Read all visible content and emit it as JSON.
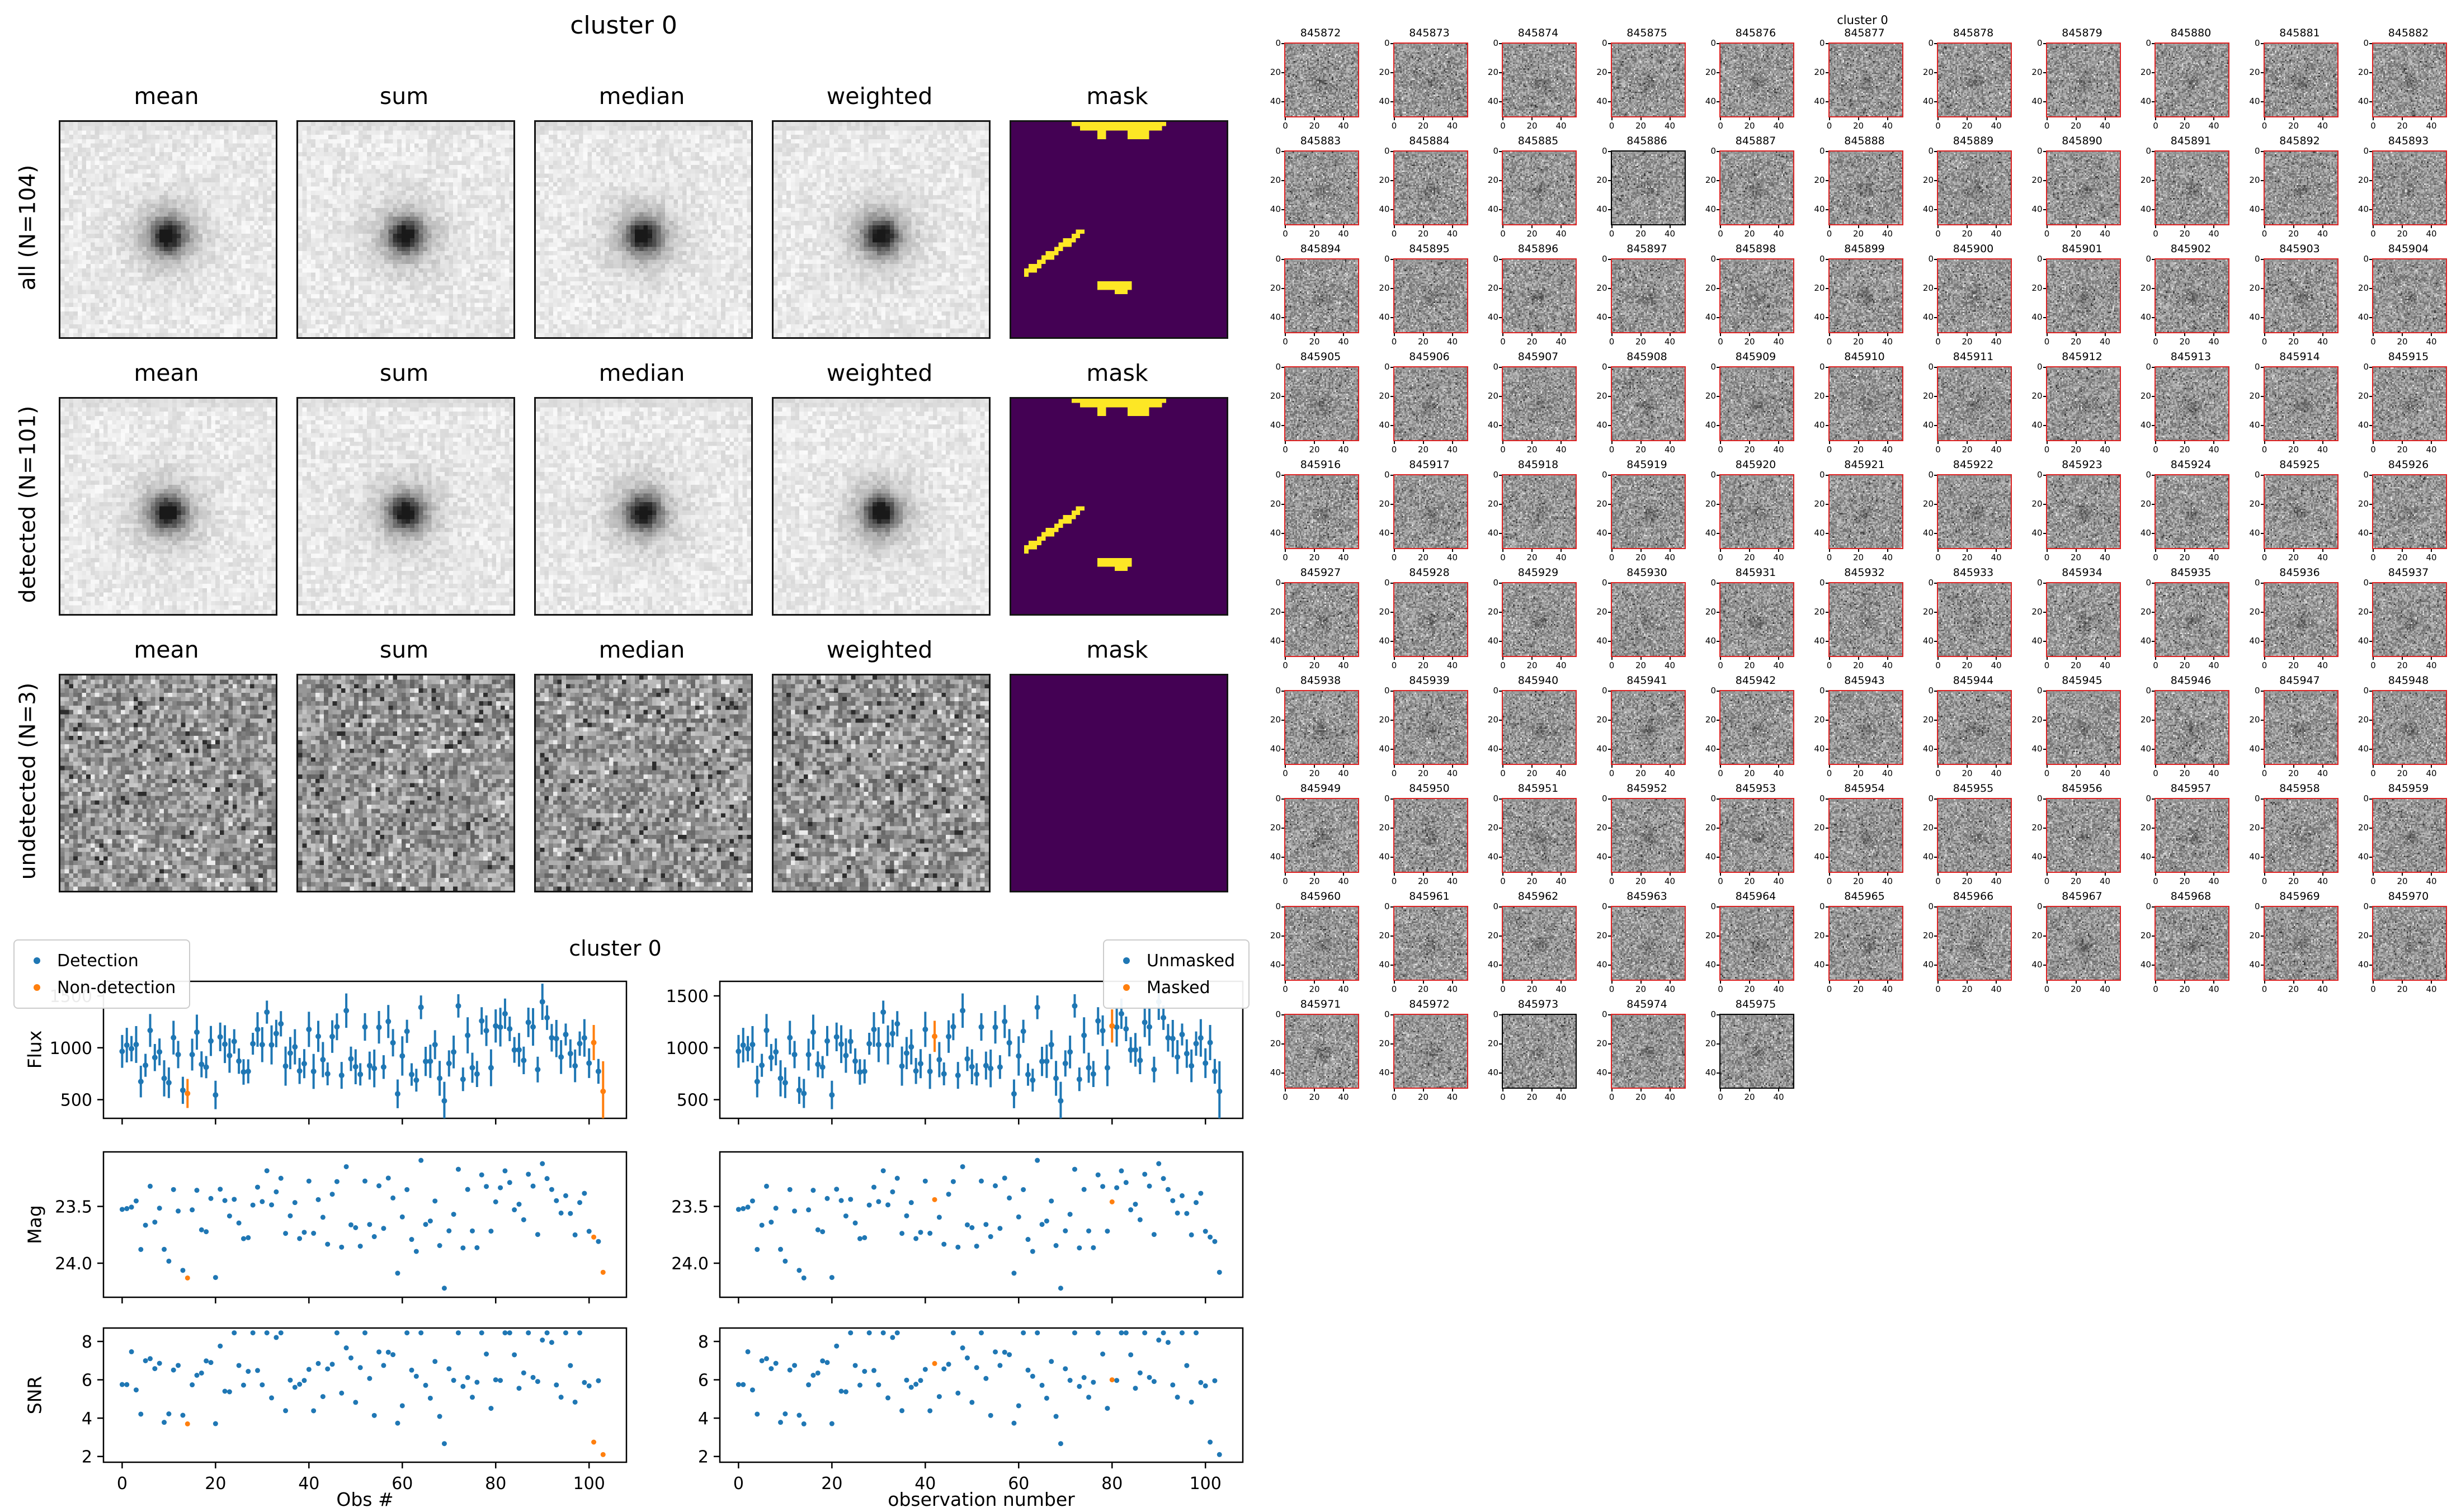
{
  "left_figure": {
    "title": "cluster 0",
    "column_headers": [
      "mean",
      "sum",
      "median",
      "weighted",
      "mask"
    ],
    "rows": [
      {
        "label": "all (N=104)",
        "stamp_type": "light-blob",
        "mask_has_pattern": true
      },
      {
        "label": "detected (N=101)",
        "stamp_type": "light-blob",
        "mask_has_pattern": true
      },
      {
        "label": "undetected (N=3)",
        "stamp_type": "dark-noise",
        "mask_has_pattern": false
      }
    ],
    "mask": {
      "background_color": "#440154",
      "pixel_color": "#fde725",
      "grid_size": 50,
      "cells": [
        [
          14,
          0,
          22,
          1
        ],
        [
          16,
          1,
          7,
          1
        ],
        [
          23,
          1,
          12,
          1
        ],
        [
          20,
          2,
          2,
          2
        ],
        [
          27,
          2,
          5,
          2
        ],
        [
          3,
          34,
          1,
          2
        ],
        [
          4,
          33,
          1,
          2
        ],
        [
          5,
          33,
          1,
          2
        ],
        [
          6,
          32,
          1,
          2
        ],
        [
          7,
          31,
          1,
          2
        ],
        [
          8,
          30,
          1,
          2
        ],
        [
          9,
          30,
          1,
          2
        ],
        [
          10,
          29,
          1,
          2
        ],
        [
          11,
          28,
          1,
          2
        ],
        [
          12,
          27,
          1,
          2
        ],
        [
          13,
          27,
          1,
          2
        ],
        [
          14,
          26,
          1,
          2
        ],
        [
          15,
          25,
          1,
          2
        ],
        [
          16,
          25,
          1,
          1
        ],
        [
          20,
          37,
          8,
          2
        ],
        [
          24,
          39,
          3,
          1
        ]
      ]
    }
  },
  "thumb_grid": {
    "suptitle": "cluster 0",
    "columns": 11,
    "count": 104,
    "start_id": 845872,
    "end_id": 845975,
    "ids": [
      845872,
      845873,
      845874,
      845875,
      845876,
      845877,
      845878,
      845879,
      845880,
      845881,
      845882,
      845883,
      845884,
      845885,
      845886,
      845887,
      845888,
      845889,
      845890,
      845891,
      845892,
      845893,
      845894,
      845895,
      845896,
      845897,
      845898,
      845899,
      845900,
      845901,
      845902,
      845903,
      845904,
      845905,
      845906,
      845907,
      845908,
      845909,
      845910,
      845911,
      845912,
      845913,
      845914,
      845915,
      845916,
      845917,
      845918,
      845919,
      845920,
      845921,
      845922,
      845923,
      845924,
      845925,
      845926,
      845927,
      845928,
      845929,
      845930,
      845931,
      845932,
      845933,
      845934,
      845935,
      845936,
      845937,
      845938,
      845939,
      845940,
      845941,
      845942,
      845943,
      845944,
      845945,
      845946,
      845947,
      845948,
      845949,
      845950,
      845951,
      845952,
      845953,
      845954,
      845955,
      845956,
      845957,
      845958,
      845959,
      845960,
      845961,
      845962,
      845963,
      845964,
      845965,
      845966,
      845967,
      845968,
      845969,
      845970,
      845971,
      845972,
      845973,
      845974,
      845975
    ],
    "tick_values": [
      0,
      20,
      40
    ],
    "border_color_detected": "#dd2222",
    "border_color_undetected": "#000000",
    "undetected_ids": [
      845886,
      845973,
      845975
    ]
  },
  "bottom_figure": {
    "suptitle": "cluster 0",
    "legend_left": {
      "items": [
        {
          "label": "Detection",
          "color": "#1f77b4"
        },
        {
          "label": "Non-detection",
          "color": "#ff7f0e"
        }
      ]
    },
    "legend_right": {
      "items": [
        {
          "label": "Unmasked",
          "color": "#1f77b4"
        },
        {
          "label": "Masked",
          "color": "#ff7f0e"
        }
      ]
    },
    "ylabels": [
      "Flux",
      "Mag",
      "SNR"
    ],
    "xlabels": [
      "Obs #",
      "observation number"
    ]
  },
  "chart_data": {
    "type": "scatter",
    "n_observations": 104,
    "x": {
      "label_left": "Obs #",
      "label_right": "observation number",
      "lim": [
        -4,
        108
      ],
      "ticks": [
        0,
        20,
        40,
        60,
        80,
        100
      ]
    },
    "rows": [
      {
        "name": "flux",
        "ylabel": "Flux",
        "style": "errorbar",
        "ylim": [
          320,
          1640
        ],
        "yticks": [
          500,
          1000,
          1500
        ],
        "approx_mean": 975,
        "approx_range": [
          430,
          1620
        ],
        "approx_err": 150
      },
      {
        "name": "mag",
        "ylabel": "Mag",
        "style": "dots",
        "ylim": [
          23.02,
          24.3
        ],
        "inverted": true,
        "yticks": [
          23.5,
          24.0
        ],
        "approx_range": [
          23.05,
          24.22
        ]
      },
      {
        "name": "snr",
        "ylabel": "SNR",
        "style": "dots",
        "ylim": [
          1.7,
          8.7
        ],
        "yticks": [
          2,
          4,
          6,
          8
        ],
        "approx_range": [
          2.0,
          8.4
        ]
      }
    ],
    "series_colors": {
      "normal": "#1f77b4",
      "flagged": "#ff7f0e"
    },
    "non_detection": {
      "obs": [
        14,
        101,
        103
      ],
      "flux": [
        560,
        1050,
        580
      ],
      "flux_err": [
        140,
        170,
        290
      ],
      "mag": [
        24.13,
        23.77,
        24.08
      ],
      "snr": [
        3.7,
        2.75,
        2.1
      ]
    },
    "masked": {
      "obs": [
        42,
        80
      ],
      "flux": [
        1110,
        1210
      ],
      "flux_err": [
        150,
        160
      ],
      "mag": [
        23.44,
        23.46
      ],
      "snr": [
        6.85,
        6.0
      ]
    }
  }
}
